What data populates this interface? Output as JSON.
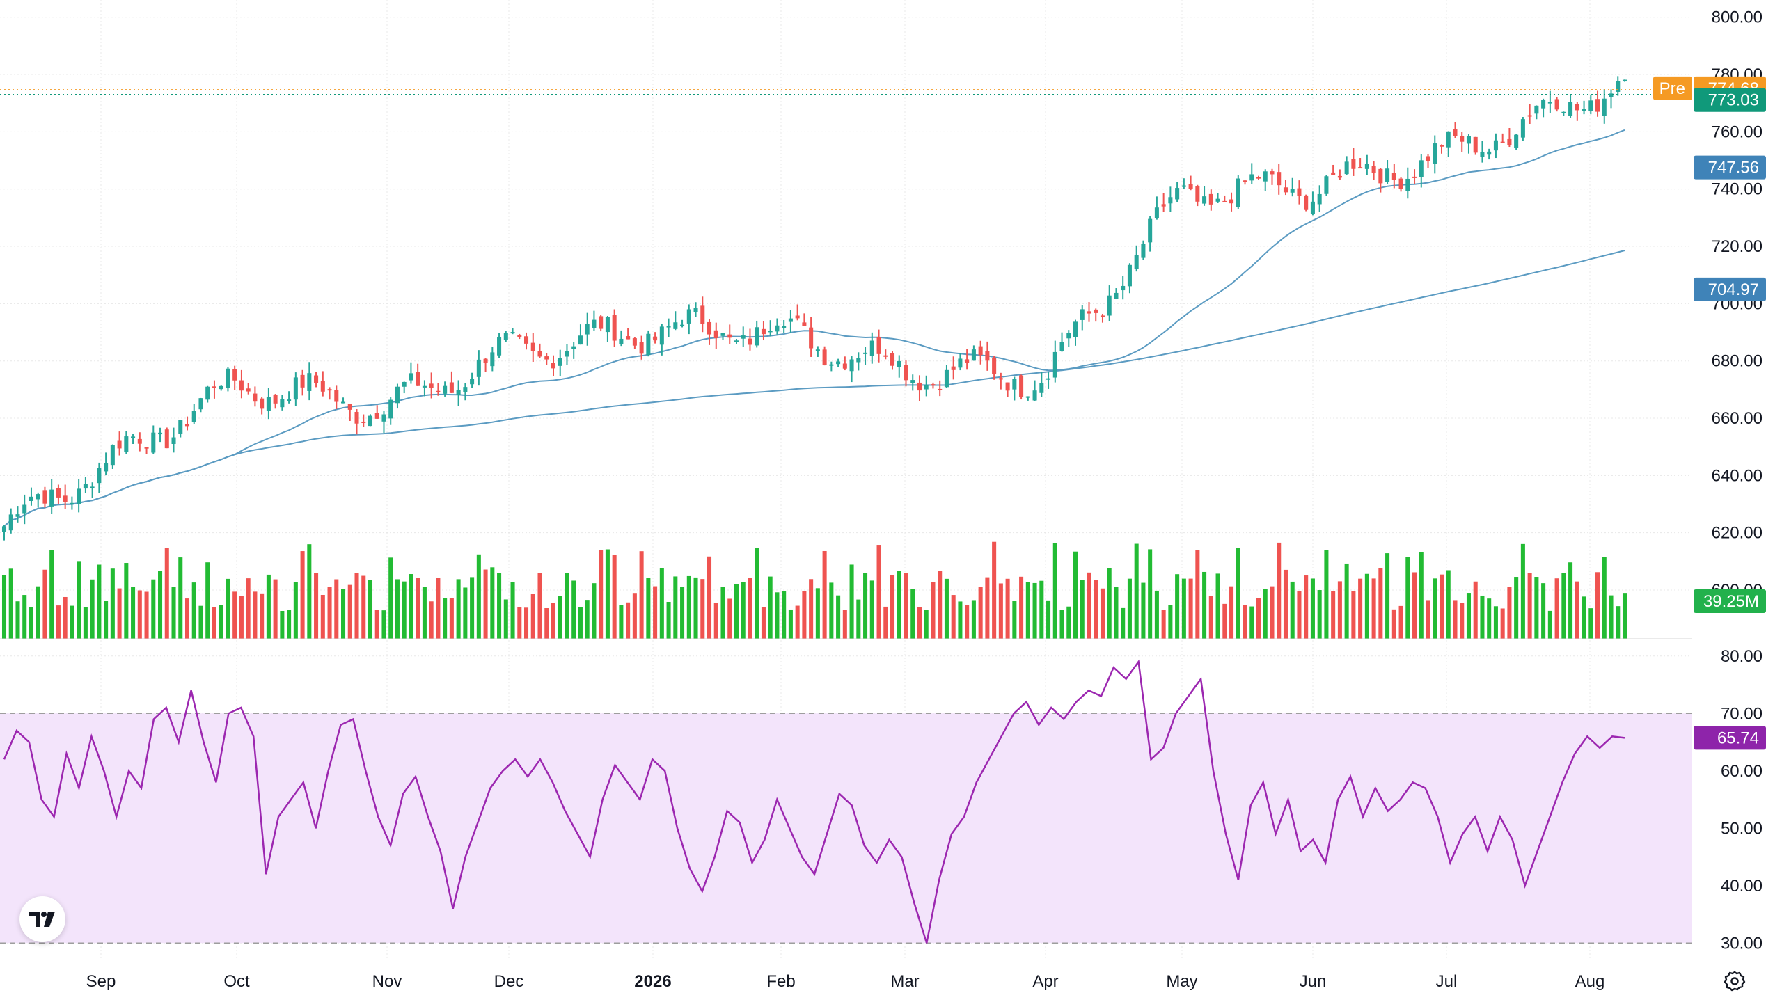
{
  "chart_data": [
    {
      "type": "candlestick",
      "title": "",
      "x_months": [
        "Sep",
        "Oct",
        "Nov",
        "Dec",
        "2026",
        "Feb",
        "Mar",
        "Apr",
        "May",
        "Jun",
        "Jul",
        "Aug"
      ],
      "y_ticks": [
        "600.00",
        "620.00",
        "640.00",
        "660.00",
        "680.00",
        "700.00",
        "720.00",
        "740.00",
        "760.00",
        "780.00",
        "800.00"
      ],
      "ylim": [
        583,
        806
      ],
      "grid": true,
      "series": [
        {
          "kind": "price",
          "values": [
            {
              "month": "Sep",
              "close": 643
            },
            {
              "month": "Oct",
              "close": 672
            },
            {
              "month": "Nov",
              "close": 664
            },
            {
              "month": "Dec",
              "close": 683
            },
            {
              "month": "2026",
              "close": 691
            },
            {
              "month": "Feb",
              "close": 691
            },
            {
              "month": "Mar",
              "close": 677
            },
            {
              "month": "Apr",
              "close": 675
            },
            {
              "month": "May",
              "close": 738
            },
            {
              "month": "Jun",
              "close": 741
            },
            {
              "month": "Jul",
              "close": 752
            },
            {
              "month": "Aug",
              "close": 773
            }
          ]
        },
        {
          "kind": "ma-short",
          "last": 747.56
        },
        {
          "kind": "ma-long",
          "last": 704.97
        }
      ],
      "price_labels": {
        "pre_label": "Pre",
        "pre_value": "774.68",
        "last_price": "773.03",
        "ma_short": "747.56",
        "ma_long": "704.97"
      },
      "volume_label": "39.25M"
    },
    {
      "type": "line",
      "indicator": "RSI",
      "y_ticks": [
        "30.00",
        "40.00",
        "50.00",
        "60.00",
        "70.00",
        "80.00"
      ],
      "ylim": [
        27,
        83
      ],
      "band": [
        30,
        70
      ],
      "last_value": "65.74",
      "values": [
        62,
        67,
        65,
        55,
        52,
        63,
        57,
        66,
        60,
        52,
        60,
        57,
        69,
        71,
        65,
        74,
        65,
        58,
        70,
        71,
        66,
        42,
        52,
        55,
        58,
        50,
        60,
        68,
        69,
        60,
        52,
        47,
        56,
        59,
        52,
        46,
        36,
        45,
        51,
        57,
        60,
        62,
        59,
        62,
        58,
        53,
        49,
        45,
        55,
        61,
        58,
        55,
        62,
        60,
        50,
        43,
        39,
        45,
        53,
        51,
        44,
        48,
        55,
        50,
        45,
        42,
        49,
        56,
        54,
        47,
        44,
        48,
        45,
        37,
        30,
        41,
        49,
        52,
        58,
        62,
        66,
        70,
        72,
        68,
        71,
        69,
        72,
        74,
        73,
        78,
        76,
        79,
        62,
        64,
        70,
        73,
        76,
        60,
        49,
        41,
        54,
        58,
        49,
        55,
        46,
        48,
        44,
        55,
        59,
        52,
        57,
        53,
        55,
        58,
        57,
        52,
        44,
        49,
        52,
        46,
        52,
        48,
        40,
        46,
        52,
        58,
        63,
        66,
        64,
        66,
        65.74
      ]
    }
  ],
  "colors": {
    "up": "#26a69a",
    "up_volume": "#22bb33",
    "down": "#ef5350",
    "ma_line": "#5b9bc2",
    "ma_tag": "#3f83b8",
    "pre_tag": "#f59a23",
    "last_tag": "#10997a",
    "rsi_line": "#9c27b0",
    "rsi_band": "#f3e4fb",
    "rsi_tag": "#8e24aa",
    "grid": "#e8e8e8",
    "volume_tag": "#22b14c"
  },
  "icons": {
    "logo": "tradingview-logo-icon",
    "settings": "settings-gear-icon"
  }
}
